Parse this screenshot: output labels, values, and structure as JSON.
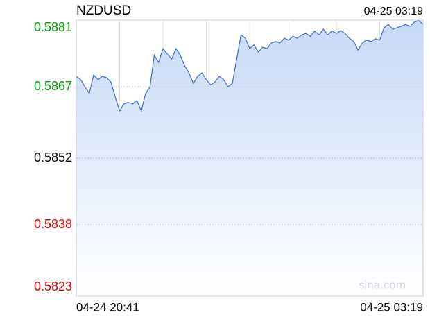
{
  "chart_data": {
    "type": "line",
    "title": "NZDUSD",
    "time": "04-25 03:19",
    "watermark": "sina.com",
    "categories": [
      "04-24 20:41",
      null,
      null,
      null,
      null,
      null,
      null,
      null,
      null,
      null,
      null,
      null,
      null,
      null,
      null,
      null,
      null,
      null,
      null,
      null,
      null,
      null,
      null,
      null,
      null,
      null,
      null,
      null,
      null,
      null,
      null,
      null,
      null,
      null,
      null,
      null,
      null,
      null,
      null,
      null,
      null,
      null,
      null,
      null,
      null,
      null,
      null,
      null,
      null,
      null,
      null,
      null,
      null,
      null,
      null,
      null,
      null,
      null,
      null,
      null,
      null,
      null,
      null,
      null,
      null,
      null,
      null,
      null,
      null,
      null,
      null,
      null,
      null,
      null,
      null,
      null,
      null,
      null,
      null,
      null,
      "04-25 03:19"
    ],
    "series": [
      {
        "name": "NZDUSD",
        "color": "#3d6bc4",
        "values": [
          0.58692,
          0.58685,
          0.5867,
          0.58656,
          0.58695,
          0.58685,
          0.58692,
          0.58689,
          0.5868,
          0.58648,
          0.58619,
          0.58634,
          0.58637,
          0.58634,
          0.58641,
          0.58619,
          0.58656,
          0.5867,
          0.58736,
          0.58721,
          0.5875,
          0.58739,
          0.58728,
          0.5875,
          0.58736,
          0.58714,
          0.58699,
          0.58677,
          0.58692,
          0.58699,
          0.58685,
          0.58674,
          0.5868,
          0.58692,
          0.58685,
          0.5867,
          0.58677,
          0.58728,
          0.58779,
          0.58772,
          0.5875,
          0.58758,
          0.58743,
          0.58753,
          0.5875,
          0.58762,
          0.58765,
          0.58762,
          0.58772,
          0.58768,
          0.58776,
          0.58772,
          0.58779,
          0.58782,
          0.58776,
          0.58787,
          0.58779,
          0.58791,
          0.58779,
          0.58787,
          0.58782,
          0.58788,
          0.58782,
          0.58772,
          0.58765,
          0.58747,
          0.58762,
          0.58768,
          0.58765,
          0.58771,
          0.58768,
          0.58794,
          0.58801,
          0.58791,
          0.58794,
          0.58797,
          0.58801,
          0.58797,
          0.58806,
          0.58809,
          0.58801
        ]
      }
    ],
    "ylim": [
      0.5823,
      0.5881
    ],
    "yticks": [
      0.5823,
      0.5838,
      0.5852,
      0.5867,
      0.5881
    ],
    "xticks": [
      10,
      20,
      30,
      40,
      50,
      60,
      70,
      80
    ],
    "tick_colors": {
      "up": "#009900",
      "neutral": "#000000",
      "down": "#e00000"
    },
    "fill": "#c6d9f7",
    "grid": true
  }
}
